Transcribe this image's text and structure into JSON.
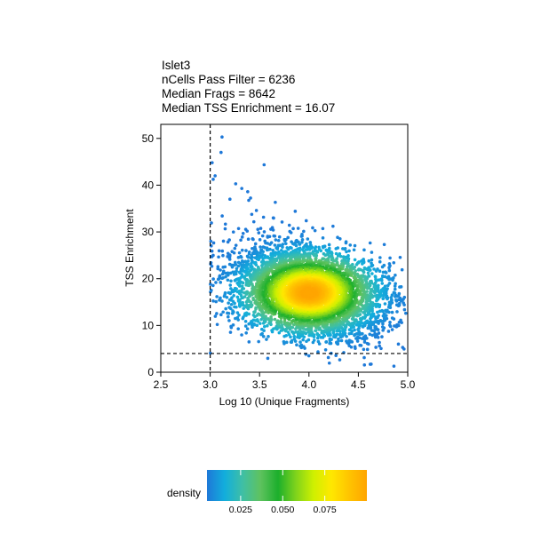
{
  "chart_data": {
    "type": "scatter",
    "title_lines": [
      "Islet3",
      "nCells Pass Filter = 6236",
      "Median Frags = 8642",
      "Median TSS Enrichment = 16.07"
    ],
    "xlabel": "Log 10 (Unique Fragments)",
    "ylabel": "TSS Enrichment",
    "xlim": [
      2.5,
      5.0
    ],
    "ylim": [
      0,
      53
    ],
    "x_ticks": [
      "2.5",
      "3.0",
      "3.5",
      "4.0",
      "4.5",
      "5.0"
    ],
    "y_ticks": [
      "0",
      "10",
      "20",
      "30",
      "40",
      "50"
    ],
    "x_tick_values": [
      2.5,
      3.0,
      3.5,
      4.0,
      4.5,
      5.0
    ],
    "y_tick_values": [
      0,
      10,
      20,
      30,
      40,
      50
    ],
    "filter_lines": {
      "x": 3.0,
      "y": 4
    },
    "density_center": {
      "x": 4.0,
      "y": 17
    },
    "sample_points": [
      {
        "x": 3.12,
        "y": 50.3
      },
      {
        "x": 3.11,
        "y": 47.0
      },
      {
        "x": 3.02,
        "y": 44.8
      },
      {
        "x": 3.05,
        "y": 42.0
      },
      {
        "x": 3.32,
        "y": 39.3
      },
      {
        "x": 3.38,
        "y": 38.6
      },
      {
        "x": 3.2,
        "y": 37.0
      },
      {
        "x": 4.86,
        "y": 1.3
      },
      {
        "x": 4.62,
        "y": 1.7
      },
      {
        "x": 4.98,
        "y": 12.6
      }
    ],
    "legend": {
      "label": "density",
      "ticks": [
        "0.025",
        "0.050",
        "0.075"
      ],
      "tick_values": [
        0.025,
        0.05,
        0.075
      ],
      "range": [
        0.005,
        0.1
      ],
      "colors": [
        "#1e78d8",
        "#12aedc",
        "#3fbfa5",
        "#5fc25f",
        "#1caf2c",
        "#7fd31c",
        "#cff000",
        "#ffe800",
        "#ffc400",
        "#ffa500"
      ]
    }
  }
}
